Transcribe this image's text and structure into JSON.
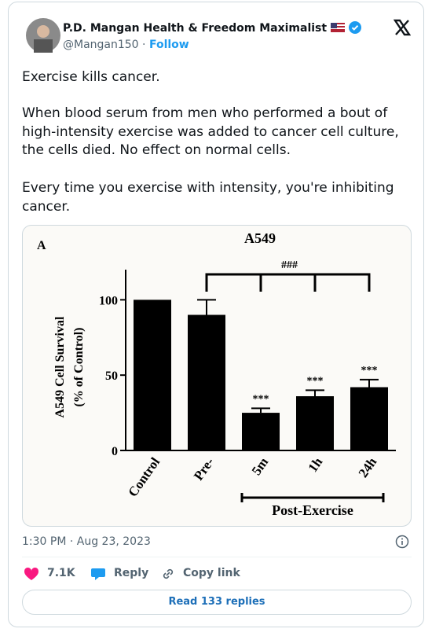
{
  "header": {
    "name": "P.D. Mangan Health & Freedom Maximalist",
    "handle": "@Mangan150",
    "separator": "·",
    "follow": "Follow"
  },
  "tweet": {
    "paragraphs": [
      "Exercise kills cancer.",
      "When blood serum from men who performed a bout of high-intensity exercise was added to cancer cell culture, the cells died. No effect on normal cells.",
      "Every time you exercise with intensity, you're inhibiting cancer."
    ]
  },
  "chart_data": {
    "type": "bar",
    "panel_label": "A",
    "title": "A549",
    "ylabel": [
      "A549 Cell  Survival",
      "(% of Control)"
    ],
    "categories": [
      "Control",
      "Pre-",
      "5m",
      "1h",
      "24h"
    ],
    "values": [
      100,
      90,
      25,
      36,
      42
    ],
    "errors": [
      null,
      10,
      3,
      4,
      5
    ],
    "significance": [
      null,
      null,
      "***",
      "***",
      "***"
    ],
    "bracket_label": "###",
    "group_label": "Post-Exercise",
    "color": "#000000",
    "ylim": [
      0,
      120
    ],
    "yticks": [
      0,
      50,
      100
    ]
  },
  "footer": {
    "timestamp": "1:30 PM · Aug 23, 2023",
    "likes": "7.1K",
    "reply": "Reply",
    "copy_link": "Copy link",
    "read_replies": "Read 133 replies"
  }
}
